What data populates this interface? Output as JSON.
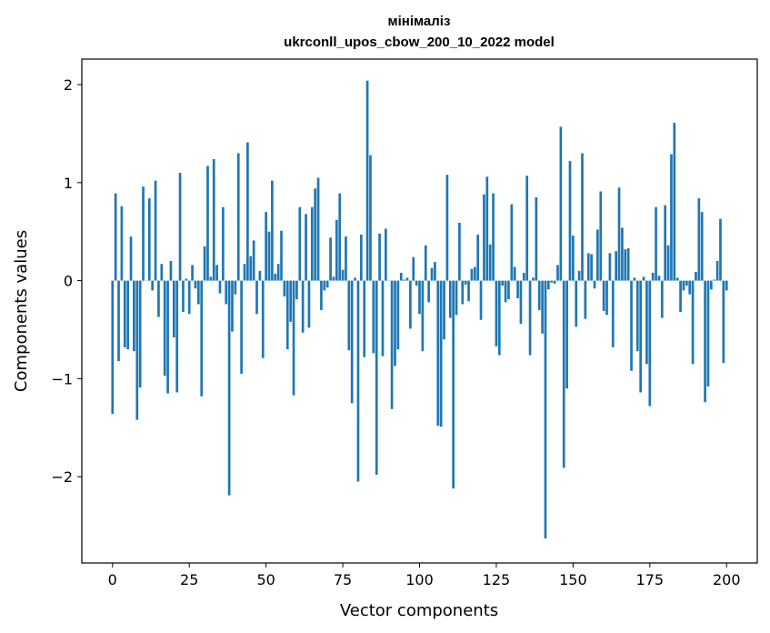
{
  "chart_data": {
    "type": "bar",
    "title_line1": "мінімаліз",
    "title_line2": "ukrconll_upos_cbow_200_10_2022 model",
    "xlabel": "Vector components",
    "ylabel": "Components values",
    "xlim": [
      -10,
      210
    ],
    "ylim": [
      -2.88,
      2.26
    ],
    "xticks": [
      0,
      25,
      50,
      75,
      100,
      125,
      150,
      175,
      200
    ],
    "yticks": [
      -2,
      -1,
      0,
      1,
      2
    ],
    "ytick_labels": [
      "−2",
      "−1",
      "0",
      "1",
      "2"
    ],
    "bar_color": "#1f77b4",
    "grid": false,
    "values": [
      -1.36,
      0.89,
      -0.82,
      0.76,
      -0.68,
      -0.7,
      0.45,
      -0.72,
      -1.42,
      -1.09,
      0.96,
      0.0,
      0.84,
      -0.1,
      1.02,
      -0.37,
      0.17,
      -0.97,
      -1.15,
      0.2,
      -0.58,
      -1.14,
      1.1,
      -0.32,
      0.02,
      -0.34,
      0.16,
      -0.08,
      -0.24,
      -1.18,
      0.35,
      1.17,
      0.04,
      1.24,
      0.16,
      -0.13,
      0.75,
      -0.24,
      -2.19,
      -0.52,
      -0.14,
      1.3,
      -0.95,
      0.17,
      1.41,
      0.25,
      0.41,
      -0.34,
      0.1,
      -0.79,
      0.7,
      0.5,
      1.02,
      0.07,
      0.17,
      0.51,
      -0.16,
      -0.7,
      -0.42,
      -1.17,
      -0.19,
      0.75,
      -0.53,
      0.68,
      -0.48,
      0.75,
      0.94,
      1.05,
      -0.3,
      -0.1,
      -0.07,
      0.44,
      0.04,
      0.62,
      0.89,
      0.11,
      0.45,
      -0.71,
      -1.25,
      0.03,
      -2.05,
      0.47,
      -0.78,
      2.04,
      1.28,
      -0.74,
      -1.98,
      0.48,
      -0.77,
      0.53,
      0.0,
      -1.31,
      -0.87,
      -0.7,
      0.08,
      0.01,
      0.03,
      -0.49,
      0.24,
      -0.05,
      -0.34,
      -0.72,
      0.36,
      -0.22,
      0.13,
      0.19,
      -1.48,
      -1.49,
      -0.6,
      1.08,
      -0.38,
      -2.12,
      -0.35,
      0.59,
      -0.24,
      -0.04,
      -0.21,
      0.12,
      0.14,
      0.47,
      -0.4,
      0.88,
      1.06,
      0.37,
      0.89,
      -0.67,
      -0.76,
      -0.05,
      -0.22,
      -0.19,
      0.78,
      0.14,
      -0.18,
      -0.44,
      0.08,
      1.07,
      -0.76,
      0.03,
      0.85,
      -0.3,
      -0.54,
      -2.63,
      -0.09,
      -0.02,
      -0.03,
      0.16,
      1.57,
      -1.91,
      -1.1,
      1.22,
      0.46,
      -0.47,
      0.1,
      1.3,
      -0.39,
      0.28,
      0.27,
      -0.08,
      0.52,
      0.91,
      -0.31,
      -0.35,
      0.28,
      -0.68,
      0.3,
      0.95,
      0.54,
      0.32,
      0.33,
      -0.92,
      0.03,
      -0.72,
      -1.14,
      0.04,
      -0.85,
      -1.28,
      0.08,
      0.75,
      0.05,
      -0.38,
      0.77,
      0.36,
      1.29,
      1.61,
      0.03,
      -0.32,
      -0.1,
      -0.05,
      -0.14,
      -0.85,
      0.09,
      0.84,
      0.7,
      -1.24,
      -1.08,
      -0.09,
      0.01,
      0.2,
      0.63,
      -0.84,
      -0.1
    ]
  }
}
